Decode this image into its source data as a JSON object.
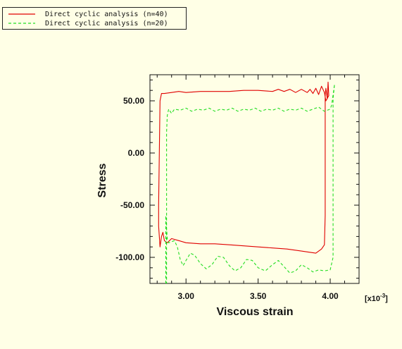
{
  "legend": {
    "entries": [
      {
        "label": "Direct cyclic analysis (n=40)",
        "color": "#e00000",
        "dash": "solid"
      },
      {
        "label": "Direct cyclic analysis (n=20)",
        "color": "#22dd22",
        "dash": "dashed"
      }
    ]
  },
  "chart_data": {
    "type": "line",
    "xlabel": "Viscous strain",
    "ylabel": "Stress",
    "x_multiplier_label": "[x10",
    "x_multiplier_exp": "-3",
    "x_multiplier_close": "]",
    "xlim": [
      2.75,
      4.2
    ],
    "ylim": [
      -125,
      75
    ],
    "x_ticks": [
      {
        "value": 3.0,
        "label": "3.00"
      },
      {
        "value": 3.5,
        "label": "3.50"
      },
      {
        "value": 4.0,
        "label": "4.00"
      }
    ],
    "y_ticks": [
      {
        "value": 50,
        "label": "50.00"
      },
      {
        "value": 0,
        "label": "0.00"
      },
      {
        "value": -50,
        "label": "-50.00"
      },
      {
        "value": -100,
        "label": "-100.00"
      }
    ],
    "grid": false,
    "legend_position": "top-left",
    "series": [
      {
        "name": "Direct cyclic analysis (n=40)",
        "color": "#e00000",
        "dash": "solid",
        "points": [
          [
            2.81,
            -70
          ],
          [
            2.82,
            -90
          ],
          [
            2.83,
            -80
          ],
          [
            2.84,
            -76
          ],
          [
            2.85,
            -84
          ],
          [
            2.87,
            -86
          ],
          [
            2.9,
            -82
          ],
          [
            2.95,
            -84
          ],
          [
            3.0,
            -86
          ],
          [
            3.1,
            -87
          ],
          [
            3.2,
            -87
          ],
          [
            3.3,
            -88
          ],
          [
            3.4,
            -89
          ],
          [
            3.5,
            -90
          ],
          [
            3.6,
            -91
          ],
          [
            3.7,
            -92
          ],
          [
            3.8,
            -94
          ],
          [
            3.85,
            -95
          ],
          [
            3.9,
            -96
          ],
          [
            3.94,
            -92
          ],
          [
            3.96,
            -88
          ],
          [
            3.965,
            -60
          ],
          [
            3.965,
            0
          ],
          [
            3.965,
            56
          ],
          [
            3.97,
            62
          ],
          [
            3.98,
            52
          ],
          [
            3.985,
            68
          ],
          [
            3.99,
            55
          ],
          [
            3.97,
            50
          ],
          [
            3.96,
            58
          ],
          [
            3.94,
            64
          ],
          [
            3.92,
            56
          ],
          [
            3.9,
            62
          ],
          [
            3.88,
            57
          ],
          [
            3.86,
            61
          ],
          [
            3.84,
            58
          ],
          [
            3.8,
            61
          ],
          [
            3.76,
            58
          ],
          [
            3.72,
            61
          ],
          [
            3.68,
            59
          ],
          [
            3.64,
            61
          ],
          [
            3.6,
            59
          ],
          [
            3.5,
            60
          ],
          [
            3.4,
            60
          ],
          [
            3.3,
            59
          ],
          [
            3.2,
            59
          ],
          [
            3.1,
            59
          ],
          [
            3.0,
            58
          ],
          [
            2.95,
            59
          ],
          [
            2.9,
            58
          ],
          [
            2.85,
            57
          ],
          [
            2.83,
            57
          ],
          [
            2.82,
            50
          ],
          [
            2.815,
            0
          ],
          [
            2.81,
            -50
          ],
          [
            2.81,
            -70
          ]
        ]
      },
      {
        "name": "Direct cyclic analysis (n=20)",
        "color": "#22dd22",
        "dash": "dashed",
        "points": [
          [
            2.86,
            -125
          ],
          [
            2.86,
            -60
          ],
          [
            2.87,
            -82
          ],
          [
            2.88,
            -86
          ],
          [
            2.92,
            -84
          ],
          [
            2.94,
            -90
          ],
          [
            2.96,
            -102
          ],
          [
            2.98,
            -108
          ],
          [
            3.0,
            -103
          ],
          [
            3.03,
            -96
          ],
          [
            3.06,
            -98
          ],
          [
            3.1,
            -106
          ],
          [
            3.14,
            -111
          ],
          [
            3.18,
            -107
          ],
          [
            3.22,
            -99
          ],
          [
            3.26,
            -100
          ],
          [
            3.3,
            -108
          ],
          [
            3.34,
            -113
          ],
          [
            3.38,
            -110
          ],
          [
            3.42,
            -102
          ],
          [
            3.46,
            -103
          ],
          [
            3.5,
            -110
          ],
          [
            3.55,
            -113
          ],
          [
            3.6,
            -107
          ],
          [
            3.64,
            -103
          ],
          [
            3.68,
            -109
          ],
          [
            3.72,
            -115
          ],
          [
            3.76,
            -113
          ],
          [
            3.8,
            -107
          ],
          [
            3.84,
            -110
          ],
          [
            3.88,
            -114
          ],
          [
            3.92,
            -112
          ],
          [
            3.96,
            -113
          ],
          [
            4.0,
            -112
          ],
          [
            4.02,
            -100
          ],
          [
            4.02,
            -50
          ],
          [
            4.02,
            0
          ],
          [
            4.02,
            40
          ],
          [
            4.02,
            52
          ],
          [
            4.03,
            66
          ],
          [
            4.01,
            46
          ],
          [
            4.0,
            42
          ],
          [
            3.96,
            40
          ],
          [
            3.92,
            44
          ],
          [
            3.88,
            42
          ],
          [
            3.84,
            40
          ],
          [
            3.8,
            43
          ],
          [
            3.76,
            41
          ],
          [
            3.72,
            42
          ],
          [
            3.68,
            40
          ],
          [
            3.64,
            43
          ],
          [
            3.6,
            41
          ],
          [
            3.56,
            42
          ],
          [
            3.52,
            40
          ],
          [
            3.48,
            43
          ],
          [
            3.44,
            41
          ],
          [
            3.4,
            42
          ],
          [
            3.36,
            40
          ],
          [
            3.32,
            43
          ],
          [
            3.28,
            41
          ],
          [
            3.24,
            42
          ],
          [
            3.2,
            40
          ],
          [
            3.16,
            43
          ],
          [
            3.12,
            41
          ],
          [
            3.08,
            42
          ],
          [
            3.04,
            40
          ],
          [
            3.0,
            43
          ],
          [
            2.96,
            41
          ],
          [
            2.92,
            42
          ],
          [
            2.9,
            38
          ],
          [
            2.88,
            42
          ],
          [
            2.87,
            36
          ],
          [
            2.865,
            20
          ],
          [
            2.865,
            -20
          ],
          [
            2.865,
            -60
          ],
          [
            2.865,
            -125
          ]
        ]
      }
    ]
  }
}
